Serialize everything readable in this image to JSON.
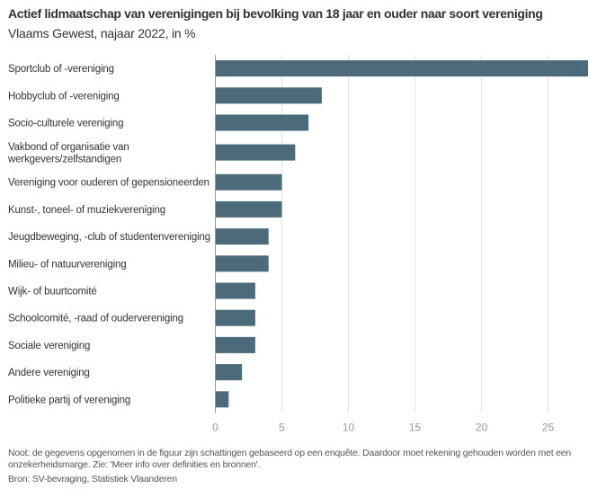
{
  "chart_data": {
    "type": "bar",
    "orientation": "horizontal",
    "title": "Actief lidmaatschap van verenigingen bij bevolking van 18 jaar en ouder naar soort vereniging",
    "subtitle": "Vlaams Gewest, najaar 2022, in %",
    "xlabel": "",
    "ylabel": "",
    "xlim": [
      0,
      28
    ],
    "xticks": [
      0,
      5,
      10,
      15,
      20,
      25
    ],
    "grid": true,
    "legend": "none",
    "bar_color": "#4b6b7a",
    "categories": [
      [
        "Sportclub of -vereniging"
      ],
      [
        "Hobbyclub of -vereniging"
      ],
      [
        "Socio-culturele vereniging"
      ],
      [
        "Vakbond of organisatie van",
        "werkgevers/zelfstandigen"
      ],
      [
        "Vereniging voor ouderen of gepensioneerden"
      ],
      [
        "Kunst-, toneel- of muziekvereniging"
      ],
      [
        "Jeugdbeweging, -club of studentenvereniging"
      ],
      [
        "Milieu- of natuurvereniging"
      ],
      [
        "Wijk- of buurtcomité"
      ],
      [
        "Schoolcomité, -raad of oudervereniging"
      ],
      [
        "Sociale vereniging"
      ],
      [
        "Andere vereniging"
      ],
      [
        "Politieke partij of vereniging"
      ]
    ],
    "values": [
      28,
      8,
      7,
      6,
      5,
      5,
      4,
      4,
      3,
      3,
      3,
      2,
      1
    ]
  },
  "footer": {
    "note": "Noot: de gegevens opgenomen in de figuur zijn schattingen gebaseerd op een enquête. Daardoor moet rekening gehouden worden met een onzekerheidsmarge. Zie: 'Meer info over definities en bronnen'.",
    "source": "Bron: SV-bevraging, Statistiek Vlaanderen"
  }
}
